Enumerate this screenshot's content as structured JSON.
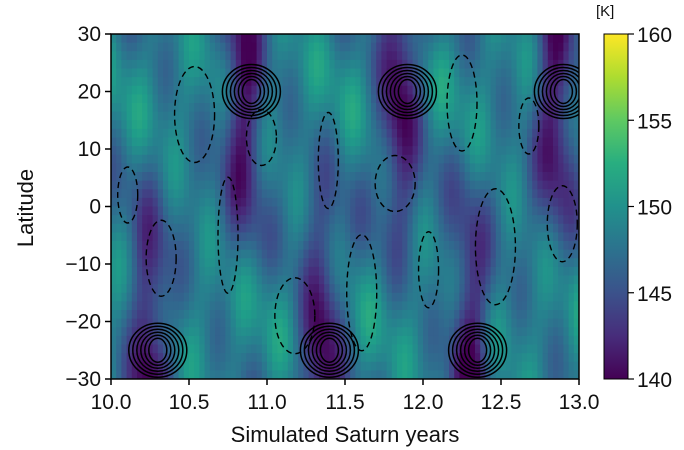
{
  "chart_data": {
    "type": "heatmap",
    "title": "",
    "xlabel": "Simulated Saturn years",
    "ylabel": "Latitude",
    "xlim": [
      10.0,
      13.0
    ],
    "ylim": [
      -30,
      30
    ],
    "xticks": [
      "10.0",
      "10.5",
      "11.0",
      "11.5",
      "12.0",
      "12.5",
      "13.0"
    ],
    "yticks": [
      "30",
      "20",
      "10",
      "0",
      "−10",
      "−20",
      "−30"
    ],
    "colorbar": {
      "unit": "[K]",
      "range": [
        140,
        160
      ],
      "ticks": [
        "160",
        "155",
        "150",
        "145",
        "140"
      ],
      "colormap": "viridis"
    },
    "contours": {
      "positive_style": "solid",
      "negative_style": "dashed",
      "color": "#000000"
    },
    "cold_bands": [
      {
        "year": 10.25,
        "latitude": -25,
        "feature": "southern cold band"
      },
      {
        "year": 10.85,
        "latitude": 20,
        "feature": "northern cold band"
      },
      {
        "year": 11.35,
        "latitude": -25,
        "feature": "southern cold band"
      },
      {
        "year": 11.85,
        "latitude": 20,
        "feature": "northern cold band"
      },
      {
        "year": 12.3,
        "latitude": -25,
        "feature": "southern cold band"
      },
      {
        "year": 12.85,
        "latitude": 20,
        "feature": "northern cold band"
      }
    ],
    "grid": false
  }
}
